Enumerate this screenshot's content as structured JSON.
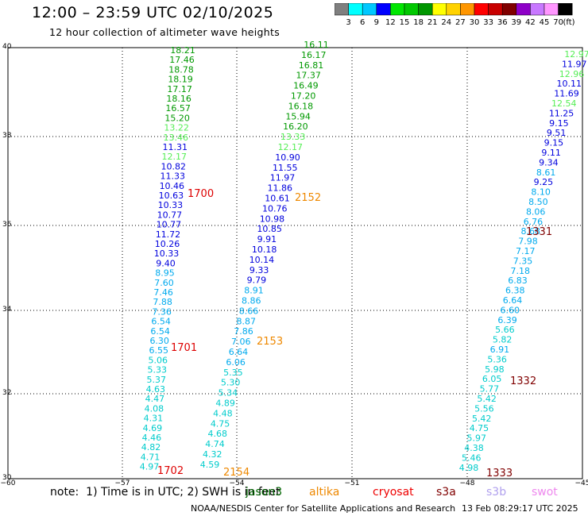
{
  "header": {
    "title": "12:00 – 23:59 UTC 02/10/2025",
    "subtitle": "12 hour collection of altimeter wave heights"
  },
  "colorscale": {
    "unit": "(ft)",
    "bins": [
      {
        "label": "3",
        "color": "#7f7f7f"
      },
      {
        "label": "6",
        "color": "#00ffff"
      },
      {
        "label": "9",
        "color": "#00c8ff"
      },
      {
        "label": "12",
        "color": "#0000ff"
      },
      {
        "label": "15",
        "color": "#00e600"
      },
      {
        "label": "18",
        "color": "#00c800"
      },
      {
        "label": "21",
        "color": "#009600"
      },
      {
        "label": "24",
        "color": "#ffff00"
      },
      {
        "label": "27",
        "color": "#ffd200"
      },
      {
        "label": "30",
        "color": "#ff9600"
      },
      {
        "label": "33",
        "color": "#ff0000"
      },
      {
        "label": "36",
        "color": "#c80000"
      },
      {
        "label": "39",
        "color": "#800000"
      },
      {
        "label": "42",
        "color": "#8e00c8"
      },
      {
        "label": "45",
        "color": "#c878ff"
      },
      {
        "label": "70",
        "color": "#ff96ff"
      },
      {
        "label": "",
        "color": "#000000"
      }
    ]
  },
  "axes": {
    "lat_labels": [
      "40",
      "38",
      "36",
      "34",
      "32",
      "30"
    ],
    "lon_labels": [
      "−60",
      "−57",
      "−54",
      "−51",
      "−48",
      "−45"
    ]
  },
  "track_colors": {
    "c0": "#00cccc",
    "c1": "#00aaee",
    "c2": "#0000dd",
    "c3": "#55ee55",
    "c4": "#009900",
    "c5": "#22bb22"
  },
  "tracks": [
    {
      "name": "track-1",
      "points": [
        [
          "18.21",
          "c4"
        ],
        [
          "17.46",
          "c4"
        ],
        [
          "18.78",
          "c4"
        ],
        [
          "18.19",
          "c4"
        ],
        [
          "17.17",
          "c4"
        ],
        [
          "18.16",
          "c4"
        ],
        [
          "16.57",
          "c4"
        ],
        [
          "15.20",
          "c4"
        ],
        [
          "13.22",
          "c3"
        ],
        [
          "13.46",
          "c3"
        ],
        [
          "11.31",
          "c2"
        ],
        [
          "12.17",
          "c3"
        ],
        [
          "10.82",
          "c2"
        ],
        [
          "11.33",
          "c2"
        ],
        [
          "10.46",
          "c2"
        ],
        [
          "10.63",
          "c2"
        ],
        [
          "10.33",
          "c2"
        ],
        [
          "10.77",
          "c2"
        ],
        [
          "10.77",
          "c2"
        ],
        [
          "11.72",
          "c2"
        ],
        [
          "10.26",
          "c2"
        ],
        [
          "10.33",
          "c2"
        ],
        [
          "9.40",
          "c2"
        ],
        [
          "8.95",
          "c1"
        ],
        [
          "7.60",
          "c1"
        ],
        [
          "7.46",
          "c1"
        ],
        [
          "7.88",
          "c1"
        ],
        [
          "7.36",
          "c1"
        ],
        [
          "6.54",
          "c1"
        ],
        [
          "6.54",
          "c1"
        ],
        [
          "6.30",
          "c1"
        ],
        [
          "6.55",
          "c1"
        ],
        [
          "5.06",
          "c0"
        ],
        [
          "5.33",
          "c0"
        ],
        [
          "5.37",
          "c0"
        ],
        [
          "4.63",
          "c0"
        ],
        [
          "4.47",
          "c0"
        ],
        [
          "4.08",
          "c0"
        ],
        [
          "4.31",
          "c0"
        ],
        [
          "4.69",
          "c0"
        ],
        [
          "4.46",
          "c0"
        ],
        [
          "4.82",
          "c0"
        ],
        [
          "4.71",
          "c0"
        ],
        [
          "4.97",
          "c0"
        ]
      ]
    },
    {
      "name": "track-2",
      "points": [
        [
          "16.11",
          "c4"
        ],
        [
          "16.17",
          "c4"
        ],
        [
          "16.81",
          "c4"
        ],
        [
          "17.37",
          "c4"
        ],
        [
          "16.49",
          "c4"
        ],
        [
          "17.20",
          "c4"
        ],
        [
          "16.18",
          "c4"
        ],
        [
          "15.94",
          "c4"
        ],
        [
          "16.20",
          "c4"
        ],
        [
          "13.33",
          "c3"
        ],
        [
          "12.17",
          "c3"
        ],
        [
          "10.90",
          "c2"
        ],
        [
          "11.55",
          "c2"
        ],
        [
          "11.97",
          "c2"
        ],
        [
          "11.86",
          "c2"
        ],
        [
          "10.61",
          "c2"
        ],
        [
          "10.76",
          "c2"
        ],
        [
          "10.98",
          "c2"
        ],
        [
          "10.85",
          "c2"
        ],
        [
          "9.91",
          "c2"
        ],
        [
          "10.18",
          "c2"
        ],
        [
          "10.14",
          "c2"
        ],
        [
          "9.33",
          "c2"
        ],
        [
          "9.79",
          "c2"
        ],
        [
          "8.91",
          "c1"
        ],
        [
          "8.86",
          "c1"
        ],
        [
          "8.66",
          "c1"
        ],
        [
          "8.87",
          "c1"
        ],
        [
          "7.86",
          "c1"
        ],
        [
          "7.06",
          "c1"
        ],
        [
          "6.64",
          "c1"
        ],
        [
          "6.06",
          "c1"
        ],
        [
          "5.35",
          "c0"
        ],
        [
          "5.30",
          "c0"
        ],
        [
          "5.34",
          "c0"
        ],
        [
          "4.89",
          "c0"
        ],
        [
          "4.48",
          "c0"
        ],
        [
          "4.75",
          "c0"
        ],
        [
          "4.68",
          "c0"
        ],
        [
          "4.74",
          "c0"
        ],
        [
          "4.32",
          "c0"
        ],
        [
          "4.59",
          "c0"
        ]
      ]
    },
    {
      "name": "track-3",
      "points": [
        [
          "12.97",
          "c3"
        ],
        [
          "11.97",
          "c2"
        ],
        [
          "12.96",
          "c3"
        ],
        [
          "10.11",
          "c2"
        ],
        [
          "11.69",
          "c2"
        ],
        [
          "12.54",
          "c3"
        ],
        [
          "11.25",
          "c2"
        ],
        [
          "9.15",
          "c2"
        ],
        [
          "9.51",
          "c2"
        ],
        [
          "9.15",
          "c2"
        ],
        [
          "9.11",
          "c2"
        ],
        [
          "9.34",
          "c2"
        ],
        [
          "8.61",
          "c1"
        ],
        [
          "9.25",
          "c2"
        ],
        [
          "8.10",
          "c1"
        ],
        [
          "8.50",
          "c1"
        ],
        [
          "8.06",
          "c1"
        ],
        [
          "6.76",
          "c1"
        ],
        [
          "8.68",
          "c1"
        ],
        [
          "7.98",
          "c1"
        ],
        [
          "7.17",
          "c1"
        ],
        [
          "7.35",
          "c1"
        ],
        [
          "7.18",
          "c1"
        ],
        [
          "6.83",
          "c1"
        ],
        [
          "6.38",
          "c1"
        ],
        [
          "6.64",
          "c1"
        ],
        [
          "6.60",
          "c1"
        ],
        [
          "6.39",
          "c1"
        ],
        [
          "5.66",
          "c0"
        ],
        [
          "5.82",
          "c0"
        ],
        [
          "6.91",
          "c1"
        ],
        [
          "5.36",
          "c0"
        ],
        [
          "5.98",
          "c0"
        ],
        [
          "6.05",
          "c0"
        ],
        [
          "5.77",
          "c0"
        ],
        [
          "5.42",
          "c0"
        ],
        [
          "5.56",
          "c0"
        ],
        [
          "5.42",
          "c0"
        ],
        [
          "4.75",
          "c0"
        ],
        [
          "5.97",
          "c0"
        ],
        [
          "4.38",
          "c0"
        ],
        [
          "5.46",
          "c0"
        ],
        [
          "4.98",
          "c0"
        ]
      ]
    }
  ],
  "time_markers": [
    {
      "text": "1700",
      "color": "#dd0000"
    },
    {
      "text": "1701",
      "color": "#dd0000"
    },
    {
      "text": "1702",
      "color": "#dd0000"
    },
    {
      "text": "2152",
      "color": "#ee8800"
    },
    {
      "text": "2153",
      "color": "#ee8800"
    },
    {
      "text": "2154",
      "color": "#ee8800"
    },
    {
      "text": "1331",
      "color": "#800000"
    },
    {
      "text": "1332",
      "color": "#800000"
    },
    {
      "text": "1333",
      "color": "#800000"
    }
  ],
  "footer": {
    "note": "note:  1) Time is in UTC; 2) SWH is in feet",
    "satellites": [
      {
        "name": "jason3",
        "color": "#006600"
      },
      {
        "name": "altika",
        "color": "#ee8800"
      },
      {
        "name": "cryosat",
        "color": "#ee0000"
      },
      {
        "name": "s3a",
        "color": "#800000"
      },
      {
        "name": "s3b",
        "color": "#b0a0ee"
      },
      {
        "name": "swot",
        "color": "#ee88ee"
      }
    ],
    "credit": "NOAA/NESDIS Center for Satellite Applications and Research",
    "timestamp": "13 Feb 08:29:17 UTC 2025"
  }
}
